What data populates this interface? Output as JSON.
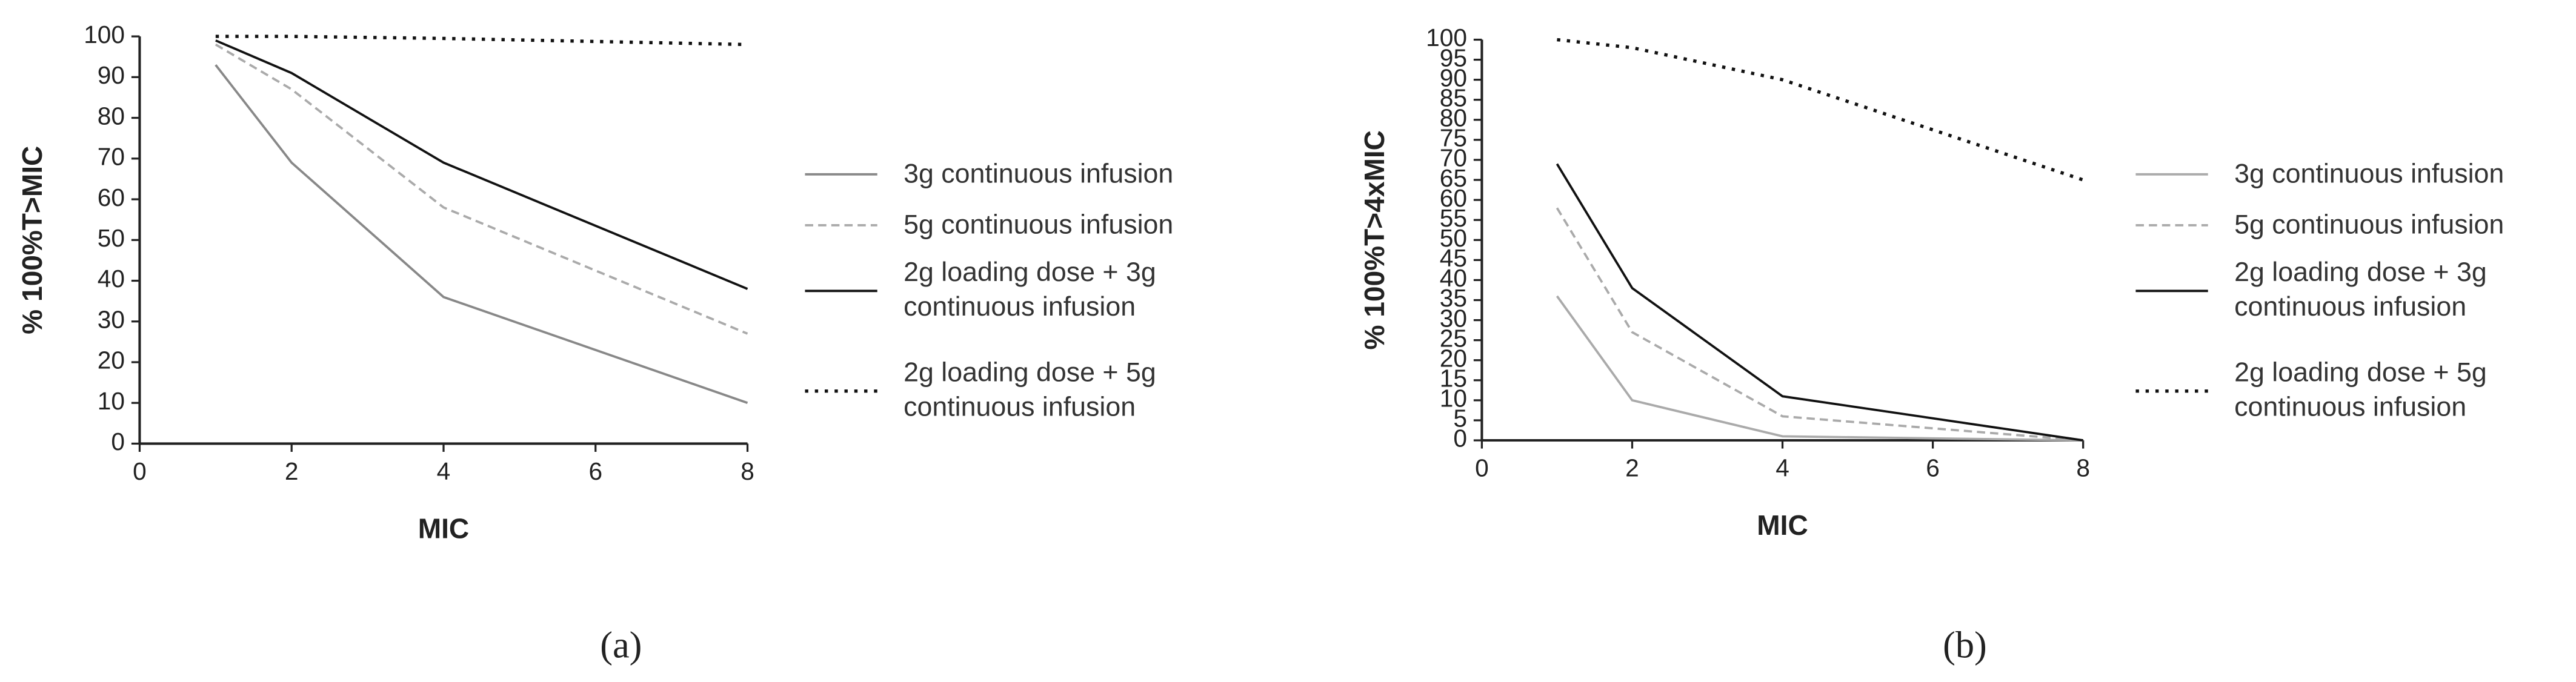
{
  "chart_data": [
    {
      "type": "line",
      "ylabel": "% 100%T>MIC",
      "xlabel": "MIC",
      "caption": "(a)",
      "x": [
        1,
        2,
        4,
        8
      ],
      "xlim": [
        0,
        8
      ],
      "xticks": [
        0,
        2,
        4,
        6,
        8
      ],
      "ylim": [
        0,
        100
      ],
      "yticks": [
        0,
        10,
        20,
        30,
        40,
        50,
        60,
        70,
        80,
        90,
        100
      ],
      "series": [
        {
          "name": "3g continuous infusion",
          "color": "#888888",
          "dash": "solid",
          "values": [
            93,
            69,
            36,
            10
          ]
        },
        {
          "name": "5g continuous infusion",
          "color": "#aaaaaa",
          "dash": "dashed",
          "values": [
            98,
            87,
            58,
            27
          ]
        },
        {
          "name": "2g loading dose + 3g continuous infusion",
          "color": "#111111",
          "dash": "solid",
          "values": [
            99,
            91,
            69,
            38
          ]
        },
        {
          "name": "2g loading dose + 5g continuous infusion",
          "color": "#111111",
          "dash": "dotted",
          "values": [
            100,
            100,
            99.5,
            98
          ]
        }
      ]
    },
    {
      "type": "line",
      "ylabel": "% 100%T>4xMIC",
      "xlabel": "MIC",
      "caption": "(b)",
      "x": [
        1,
        2,
        4,
        8
      ],
      "xlim": [
        0,
        8
      ],
      "xticks": [
        0,
        2,
        4,
        6,
        8
      ],
      "ylim": [
        0,
        100
      ],
      "yticks": [
        0,
        5,
        10,
        15,
        20,
        25,
        30,
        35,
        40,
        45,
        50,
        55,
        60,
        65,
        70,
        75,
        80,
        85,
        90,
        95,
        100
      ],
      "series": [
        {
          "name": "3g continuous infusion",
          "color": "#aaaaaa",
          "dash": "solid",
          "values": [
            36,
            10,
            1,
            0
          ]
        },
        {
          "name": "5g continuous infusion",
          "color": "#aaaaaa",
          "dash": "dashed",
          "values": [
            58,
            27,
            6,
            0
          ]
        },
        {
          "name": "2g loading dose + 3g continuous infusion",
          "color": "#111111",
          "dash": "solid",
          "values": [
            69,
            38,
            11,
            0
          ]
        },
        {
          "name": "2g loading dose + 5g continuous infusion",
          "color": "#111111",
          "dash": "dotted",
          "values": [
            100,
            98,
            90,
            65
          ]
        }
      ]
    }
  ]
}
